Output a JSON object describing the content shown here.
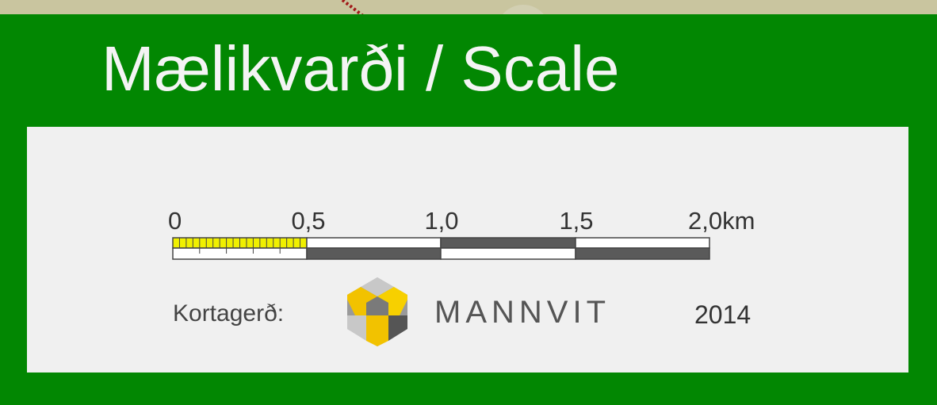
{
  "title": "Mælikvarði / Scale",
  "scale": {
    "labels": [
      "0",
      "0,5",
      "1,0",
      "1,5",
      "2,0km"
    ]
  },
  "credit": {
    "label": "Kortagerð:",
    "company": "MANNVIT",
    "year": "2014"
  }
}
